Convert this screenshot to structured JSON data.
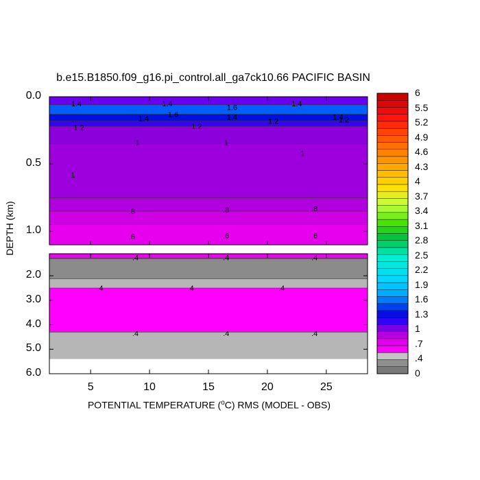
{
  "chart_data": {
    "type": "heatmap",
    "title": "b.e15.B1850.f09_g16.pi_control.all_ga7ck10.66 PACIFIC BASIN",
    "xlabel_parts": [
      "POTENTIAL TEMPERATURE (",
      "o",
      "C) RMS (MODEL - OBS)"
    ],
    "ylabel": "DEPTH (km)",
    "x_range": [
      1.5,
      28.5
    ],
    "x_ticks": [
      "5",
      "10",
      "15",
      "20",
      "25"
    ],
    "x_tick_values": [
      5,
      10,
      15,
      20,
      25
    ],
    "upper_panel": {
      "ylim": [
        0.0,
        1.1
      ],
      "y_ticks": [
        "0.0",
        "0.5",
        "1.0"
      ],
      "y_tick_values": [
        0.0,
        0.5,
        1.0
      ],
      "layers": [
        {
          "depth_top": 0.0,
          "depth_bottom": 0.06,
          "value": 1.0
        },
        {
          "depth_top": 0.06,
          "depth_bottom": 0.13,
          "value": 1.5
        },
        {
          "depth_top": 0.13,
          "depth_bottom": 0.18,
          "value": 1.3
        },
        {
          "depth_top": 0.18,
          "depth_bottom": 0.22,
          "value": 1.1
        },
        {
          "depth_top": 0.22,
          "depth_bottom": 0.35,
          "value": 0.95
        },
        {
          "depth_top": 0.35,
          "depth_bottom": 0.75,
          "value": 0.9
        },
        {
          "depth_top": 0.75,
          "depth_bottom": 0.85,
          "value": 0.85
        },
        {
          "depth_top": 0.85,
          "depth_bottom": 0.95,
          "value": 0.75
        },
        {
          "depth_top": 0.95,
          "depth_bottom": 1.1,
          "value": 0.65
        }
      ],
      "contour_labels": [
        {
          "text": "1.4",
          "x": 3.8,
          "depth": 0.05
        },
        {
          "text": "1.4",
          "x": 11.5,
          "depth": 0.05
        },
        {
          "text": "1.4",
          "x": 22.5,
          "depth": 0.05
        },
        {
          "text": "1.6",
          "x": 12.0,
          "depth": 0.13
        },
        {
          "text": "1.6",
          "x": 17.0,
          "depth": 0.08
        },
        {
          "text": "1.4",
          "x": 9.5,
          "depth": 0.16
        },
        {
          "text": "1.4",
          "x": 17.0,
          "depth": 0.15
        },
        {
          "text": "1.4",
          "x": 26.0,
          "depth": 0.15
        },
        {
          "text": "1.2",
          "x": 4.0,
          "depth": 0.23
        },
        {
          "text": "1.2",
          "x": 14.0,
          "depth": 0.22
        },
        {
          "text": "1.2",
          "x": 20.5,
          "depth": 0.18
        },
        {
          "text": "1.2",
          "x": 26.5,
          "depth": 0.17
        },
        {
          "text": "1",
          "x": 9.0,
          "depth": 0.34
        },
        {
          "text": "1",
          "x": 16.5,
          "depth": 0.34
        },
        {
          "text": "1",
          "x": 23.0,
          "depth": 0.42
        },
        {
          "text": "1",
          "x": 3.5,
          "depth": 0.58
        },
        {
          "text": ".8",
          "x": 8.5,
          "depth": 0.85
        },
        {
          "text": ".8",
          "x": 16.5,
          "depth": 0.84
        },
        {
          "text": ".8",
          "x": 24.0,
          "depth": 0.83
        },
        {
          "text": ".6",
          "x": 8.5,
          "depth": 1.04
        },
        {
          "text": ".6",
          "x": 16.5,
          "depth": 1.03
        },
        {
          "text": ".6",
          "x": 24.0,
          "depth": 1.03
        }
      ]
    },
    "lower_panel": {
      "ylim": [
        1.1,
        6.0
      ],
      "y_ticks": [
        "2.0",
        "3.0",
        "4.0",
        "5.0",
        "6.0"
      ],
      "y_tick_values": [
        2.0,
        3.0,
        4.0,
        5.0,
        6.0
      ],
      "layers": [
        {
          "depth_top": 1.1,
          "depth_bottom": 1.28,
          "value": 0.6
        },
        {
          "depth_top": 1.28,
          "depth_bottom": 1.3,
          "value": 0.45
        },
        {
          "depth_top": 1.3,
          "depth_bottom": 2.12,
          "value": 0.2
        },
        {
          "depth_top": 2.12,
          "depth_bottom": 2.5,
          "value": 0.35
        },
        {
          "depth_top": 2.5,
          "depth_bottom": 4.3,
          "value": 0.5
        },
        {
          "depth_top": 4.3,
          "depth_bottom": 5.4,
          "value": 0.35
        }
      ],
      "contour_labels": [
        {
          "text": ".4",
          "x": 8.8,
          "depth": 1.25
        },
        {
          "text": ".4",
          "x": 16.5,
          "depth": 1.25
        },
        {
          "text": ".4",
          "x": 24.0,
          "depth": 1.25
        },
        {
          "text": ".4",
          "x": 5.8,
          "depth": 2.5
        },
        {
          "text": ".4",
          "x": 13.5,
          "depth": 2.5
        },
        {
          "text": ".4",
          "x": 21.2,
          "depth": 2.5
        },
        {
          "text": ".4",
          "x": 8.8,
          "depth": 4.35
        },
        {
          "text": ".4",
          "x": 16.5,
          "depth": 4.35
        },
        {
          "text": ".4",
          "x": 24.0,
          "depth": 4.35
        }
      ]
    },
    "colorbar": {
      "range": [
        0,
        6
      ],
      "labels": [
        "6",
        "5.5",
        "5.2",
        "4.9",
        "4.6",
        "4.3",
        "4",
        "3.7",
        "3.4",
        "3.1",
        "2.8",
        "2.5",
        "2.2",
        "1.9",
        "1.6",
        "1.3",
        "1",
        ".7",
        ".4",
        "0"
      ],
      "label_values": [
        6,
        5.5,
        5.2,
        4.9,
        4.6,
        4.3,
        4.0,
        3.7,
        3.4,
        3.1,
        2.8,
        2.5,
        2.2,
        1.9,
        1.6,
        1.3,
        1.0,
        0.7,
        0.4,
        0
      ]
    }
  }
}
